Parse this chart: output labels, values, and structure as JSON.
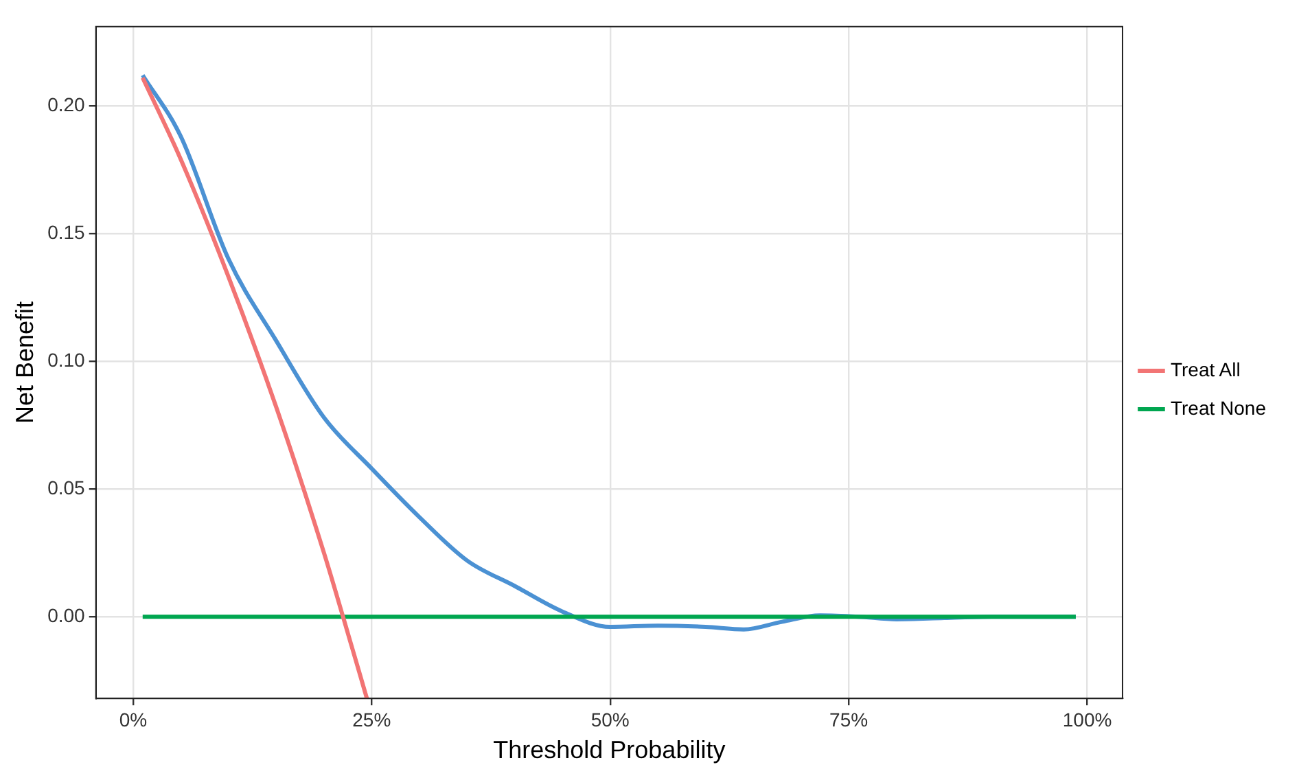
{
  "chart_data": {
    "type": "line",
    "xlabel": "Threshold Probability",
    "ylabel": "Net Benefit",
    "xlim": [
      -3.9,
      103.7
    ],
    "ylim": [
      -0.032,
      0.231
    ],
    "xticks": [
      {
        "value": 0,
        "label": "0%"
      },
      {
        "value": 25,
        "label": "25%"
      },
      {
        "value": 50,
        "label": "50%"
      },
      {
        "value": 75,
        "label": "75%"
      },
      {
        "value": 100,
        "label": "100%"
      }
    ],
    "yticks": [
      {
        "value": 0,
        "label": "0.00"
      },
      {
        "value": 0.05,
        "label": "0.05"
      },
      {
        "value": 0.1,
        "label": "0.10"
      },
      {
        "value": 0.15,
        "label": "0.15"
      },
      {
        "value": 0.2,
        "label": "0.20"
      }
    ],
    "grid": true,
    "legend": "right",
    "marker": "none",
    "line_style": "solid",
    "series": [
      {
        "name": "Treat All",
        "color": "#f27474",
        "x": [
          1,
          5,
          10,
          15,
          20,
          22,
          24.5
        ],
        "values": [
          0.211,
          0.179,
          0.133,
          0.082,
          0.025,
          0,
          -0.032
        ]
      },
      {
        "name": "Treat None",
        "color": "#00a650",
        "x": [
          1,
          98.8
        ],
        "values": [
          0,
          0
        ]
      },
      {
        "color": "#4b91d3",
        "x": [
          1,
          5,
          10,
          15,
          20,
          25,
          30,
          35,
          40,
          45,
          50,
          55,
          60,
          64,
          68,
          72,
          76,
          80,
          85,
          90,
          98.8
        ],
        "values": [
          0.212,
          0.188,
          0.14,
          0.108,
          0.078,
          0.058,
          0.039,
          0.022,
          0.012,
          0.002,
          -0.004,
          -0.0035,
          -0.004,
          -0.005,
          -0.002,
          0.0005,
          0,
          -0.001,
          -0.0005,
          0,
          0
        ]
      }
    ]
  }
}
